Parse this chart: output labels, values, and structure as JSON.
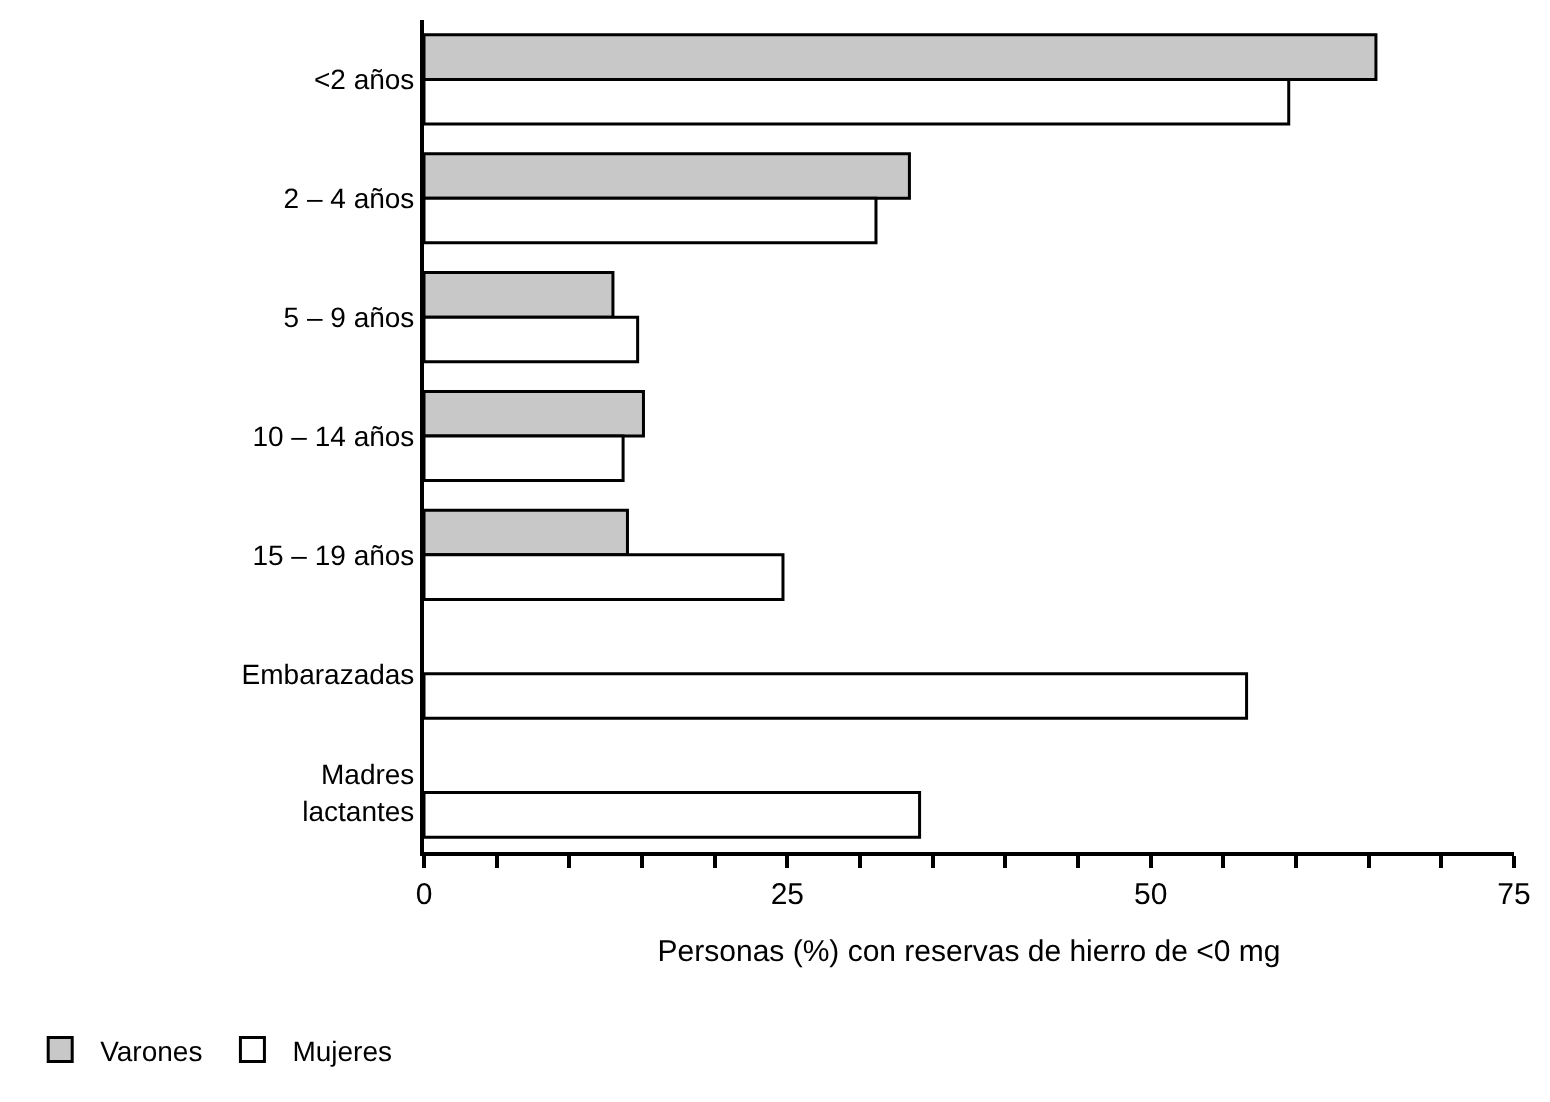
{
  "chart_data": {
    "type": "bar",
    "orientation": "horizontal",
    "xlabel": "Personas (%) con reservas de hierro de <0 mg",
    "categories": [
      "<2 años",
      "2 – 4 años",
      "5 – 9 años",
      "10 – 14 años",
      "15 – 19 años",
      "Embarazadas",
      "Madres\nlactantes"
    ],
    "series": [
      {
        "name": "Varones",
        "color": "#c8c8c8",
        "values": [
          65.5,
          33.4,
          13.0,
          15.1,
          14.0,
          null,
          null
        ]
      },
      {
        "name": "Mujeres",
        "color": "#ffffff",
        "values": [
          59.5,
          31.1,
          14.7,
          13.7,
          24.7,
          56.6,
          34.1
        ]
      }
    ],
    "xlim": [
      0,
      75
    ],
    "xticks": [
      0,
      {
        "value": 5,
        "label": null
      },
      {
        "value": 10,
        "label": null
      },
      {
        "value": 15,
        "label": null
      },
      {
        "value": 20,
        "label": null
      },
      25,
      {
        "value": 30,
        "label": null
      },
      {
        "value": 35,
        "label": null
      },
      {
        "value": 40,
        "label": null
      },
      {
        "value": 45,
        "label": null
      },
      50,
      {
        "value": 55,
        "label": null
      },
      {
        "value": 60,
        "label": null
      },
      {
        "value": 65,
        "label": null
      },
      {
        "value": 70,
        "label": null
      },
      75
    ],
    "legend": "bottom left"
  }
}
